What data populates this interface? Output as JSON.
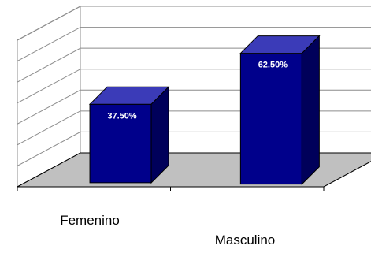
{
  "chart_data": {
    "type": "bar",
    "style": "3d-column",
    "categories": [
      "Femenino",
      "Masculino"
    ],
    "values": [
      37.5,
      62.5
    ],
    "value_labels": [
      "37.50%",
      "62.50%"
    ],
    "unit": "%",
    "ylim": [
      0,
      70
    ],
    "y_gridlines": 7,
    "grid": true,
    "legend": "none",
    "colors": {
      "bar_front": "#00008b",
      "bar_top": "#3b3bb8",
      "bar_side": "#00005a",
      "floor": "#c0c0c0",
      "wall": "#ffffff",
      "grid": "#8c8c8c"
    }
  }
}
